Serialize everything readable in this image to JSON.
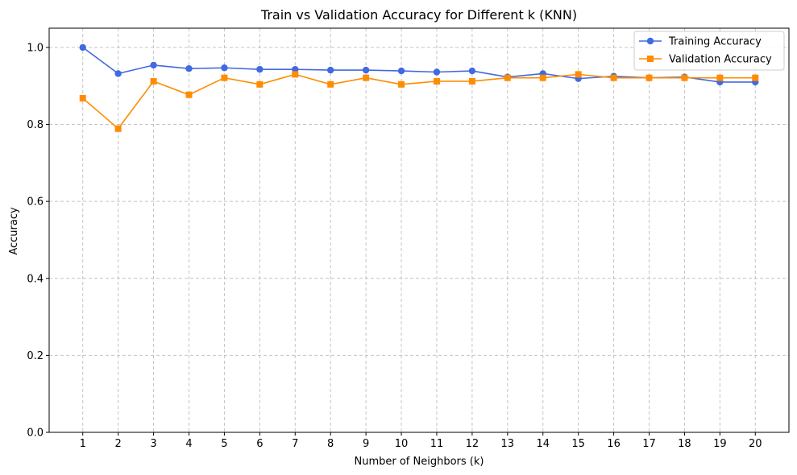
{
  "chart_data": {
    "type": "line",
    "title": "Train vs Validation Accuracy for Different k (KNN)",
    "xlabel": "Number of Neighbors (k)",
    "ylabel": "Accuracy",
    "x": [
      1,
      2,
      3,
      4,
      5,
      6,
      7,
      8,
      9,
      10,
      11,
      12,
      13,
      14,
      15,
      16,
      17,
      18,
      19,
      20
    ],
    "xlim": [
      0.05,
      20.95
    ],
    "ylim": [
      0,
      1.05
    ],
    "yticks": [
      0.0,
      0.2,
      0.4,
      0.6,
      0.8,
      1.0
    ],
    "ytick_labels": [
      "0.0",
      "0.2",
      "0.4",
      "0.6",
      "0.8",
      "1.0"
    ],
    "grid": true,
    "legend_position": "top-right",
    "series": [
      {
        "name": "Training Accuracy",
        "color": "#4169e1",
        "marker": "circle",
        "values": [
          1.0,
          0.932,
          0.954,
          0.945,
          0.947,
          0.943,
          0.943,
          0.941,
          0.941,
          0.939,
          0.936,
          0.939,
          0.923,
          0.932,
          0.919,
          0.925,
          0.921,
          0.923,
          0.91,
          0.91
        ]
      },
      {
        "name": "Validation Accuracy",
        "color": "#ff8c00",
        "marker": "square",
        "values": [
          0.868,
          0.789,
          0.912,
          0.877,
          0.921,
          0.904,
          0.93,
          0.904,
          0.921,
          0.904,
          0.912,
          0.912,
          0.921,
          0.921,
          0.93,
          0.921,
          0.921,
          0.921,
          0.921,
          0.921
        ]
      }
    ]
  }
}
